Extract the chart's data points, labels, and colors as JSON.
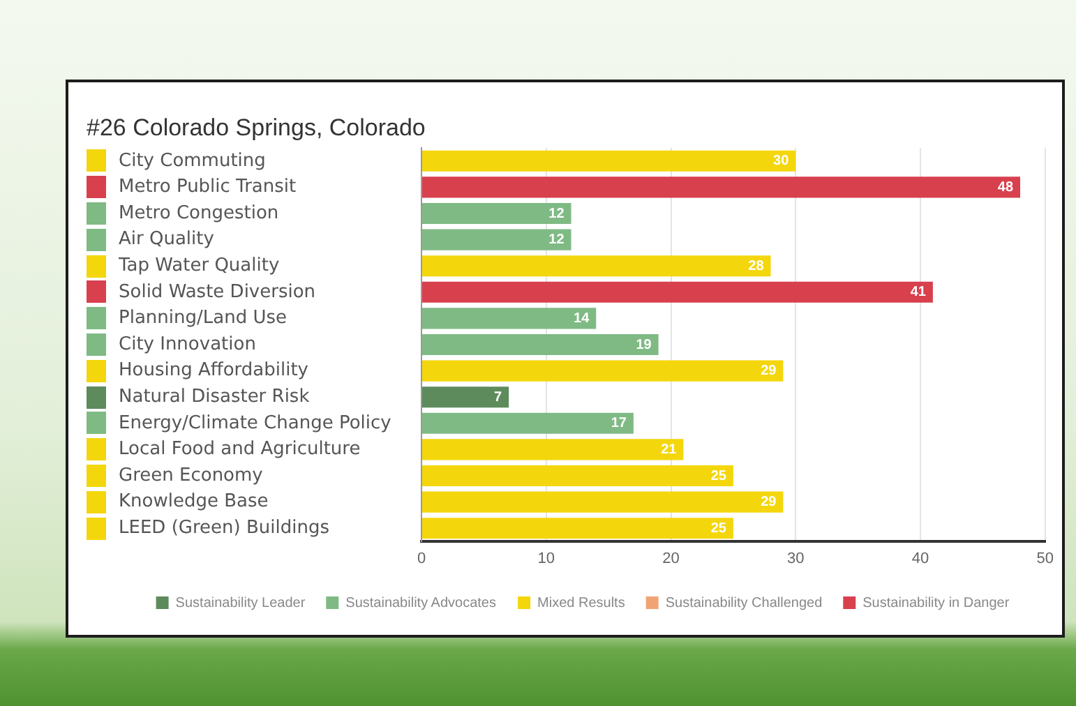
{
  "chart_data": {
    "type": "bar",
    "orientation": "horizontal",
    "stacked": true,
    "title": "#26 Colorado Springs, Colorado",
    "categories": [
      "City Commuting",
      "Metro Public Transit",
      "Metro Congestion",
      "Air Quality",
      "Tap Water Quality",
      "Solid Waste Diversion",
      "Planning/Land Use",
      "City Innovation",
      "Housing Affordability",
      "Natural Disaster Risk",
      "Energy/Climate Change Policy",
      "Local Food and Agriculture",
      "Green Economy",
      "Knowledge Base",
      "LEED (Green) Buildings"
    ],
    "series": [
      {
        "name": "Sustainability Leader",
        "color": "#5e8b5c",
        "values": [
          null,
          null,
          null,
          null,
          null,
          null,
          null,
          null,
          null,
          7,
          null,
          null,
          null,
          null,
          null
        ]
      },
      {
        "name": "Sustainability Advocates",
        "color": "#7fba84",
        "values": [
          null,
          null,
          12,
          12,
          null,
          null,
          14,
          19,
          null,
          null,
          17,
          null,
          null,
          null,
          null
        ]
      },
      {
        "name": "Mixed Results",
        "color": "#f4d60c",
        "values": [
          30,
          null,
          null,
          null,
          28,
          null,
          null,
          null,
          29,
          null,
          null,
          21,
          25,
          29,
          25
        ]
      },
      {
        "name": "Sustainability Challenged",
        "color": "#f0a474",
        "values": [
          null,
          null,
          null,
          null,
          null,
          null,
          null,
          null,
          null,
          null,
          null,
          null,
          null,
          null,
          null
        ]
      },
      {
        "name": "Sustainability in Danger",
        "color": "#d8404e",
        "values": [
          null,
          48,
          null,
          null,
          null,
          41,
          null,
          null,
          null,
          null,
          null,
          null,
          null,
          null,
          null
        ]
      }
    ],
    "xlim": [
      0,
      50
    ],
    "xticks": [
      0,
      10,
      20,
      30,
      40,
      50
    ],
    "grid": "x",
    "legend": "bottom",
    "data_labels": true
  }
}
